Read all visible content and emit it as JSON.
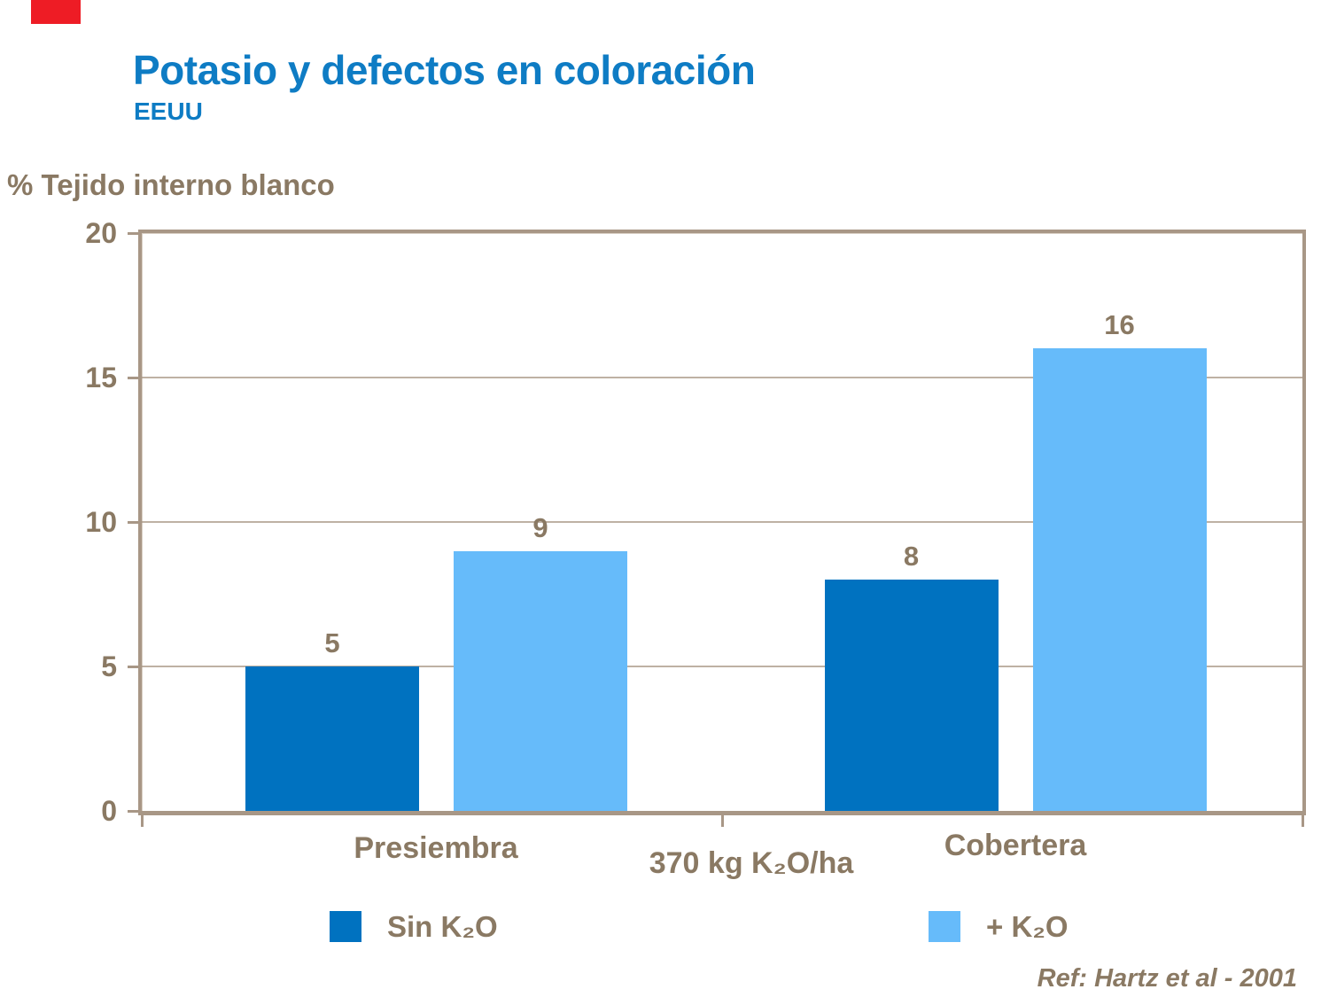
{
  "slide": {
    "title": "Potasio y defectos en coloración",
    "subtitle": "EEUU",
    "reference": "Ref: Hartz et al - 2001",
    "colors": {
      "title_blue": "#0E7CC4",
      "chart_text_brown": "#8A7963",
      "axis_tan": "#A89786",
      "corner_mark_red": "#EE1C25",
      "bar_dark_blue": "#0072C0",
      "bar_light_blue": "#66BBFA"
    }
  },
  "chart_data": {
    "type": "bar",
    "categories": [
      "Presiembra",
      "Cobertera"
    ],
    "series": [
      {
        "name": "Sin K₂O",
        "color": "#0072C0",
        "values": [
          5,
          8
        ]
      },
      {
        "name": "+ K₂O",
        "color": "#66BBFA",
        "values": [
          9,
          16
        ]
      }
    ],
    "title": "Potasio y defectos en coloración",
    "subtitle": "EEUU",
    "ylabel": "% Tejido interno blanco",
    "xlabel": "370 kg K₂O/ha",
    "ylim": [
      0,
      20
    ],
    "yticks": [
      0,
      5,
      10,
      15,
      20
    ],
    "grid": true,
    "legend_position": "bottom",
    "data_labels": true
  }
}
